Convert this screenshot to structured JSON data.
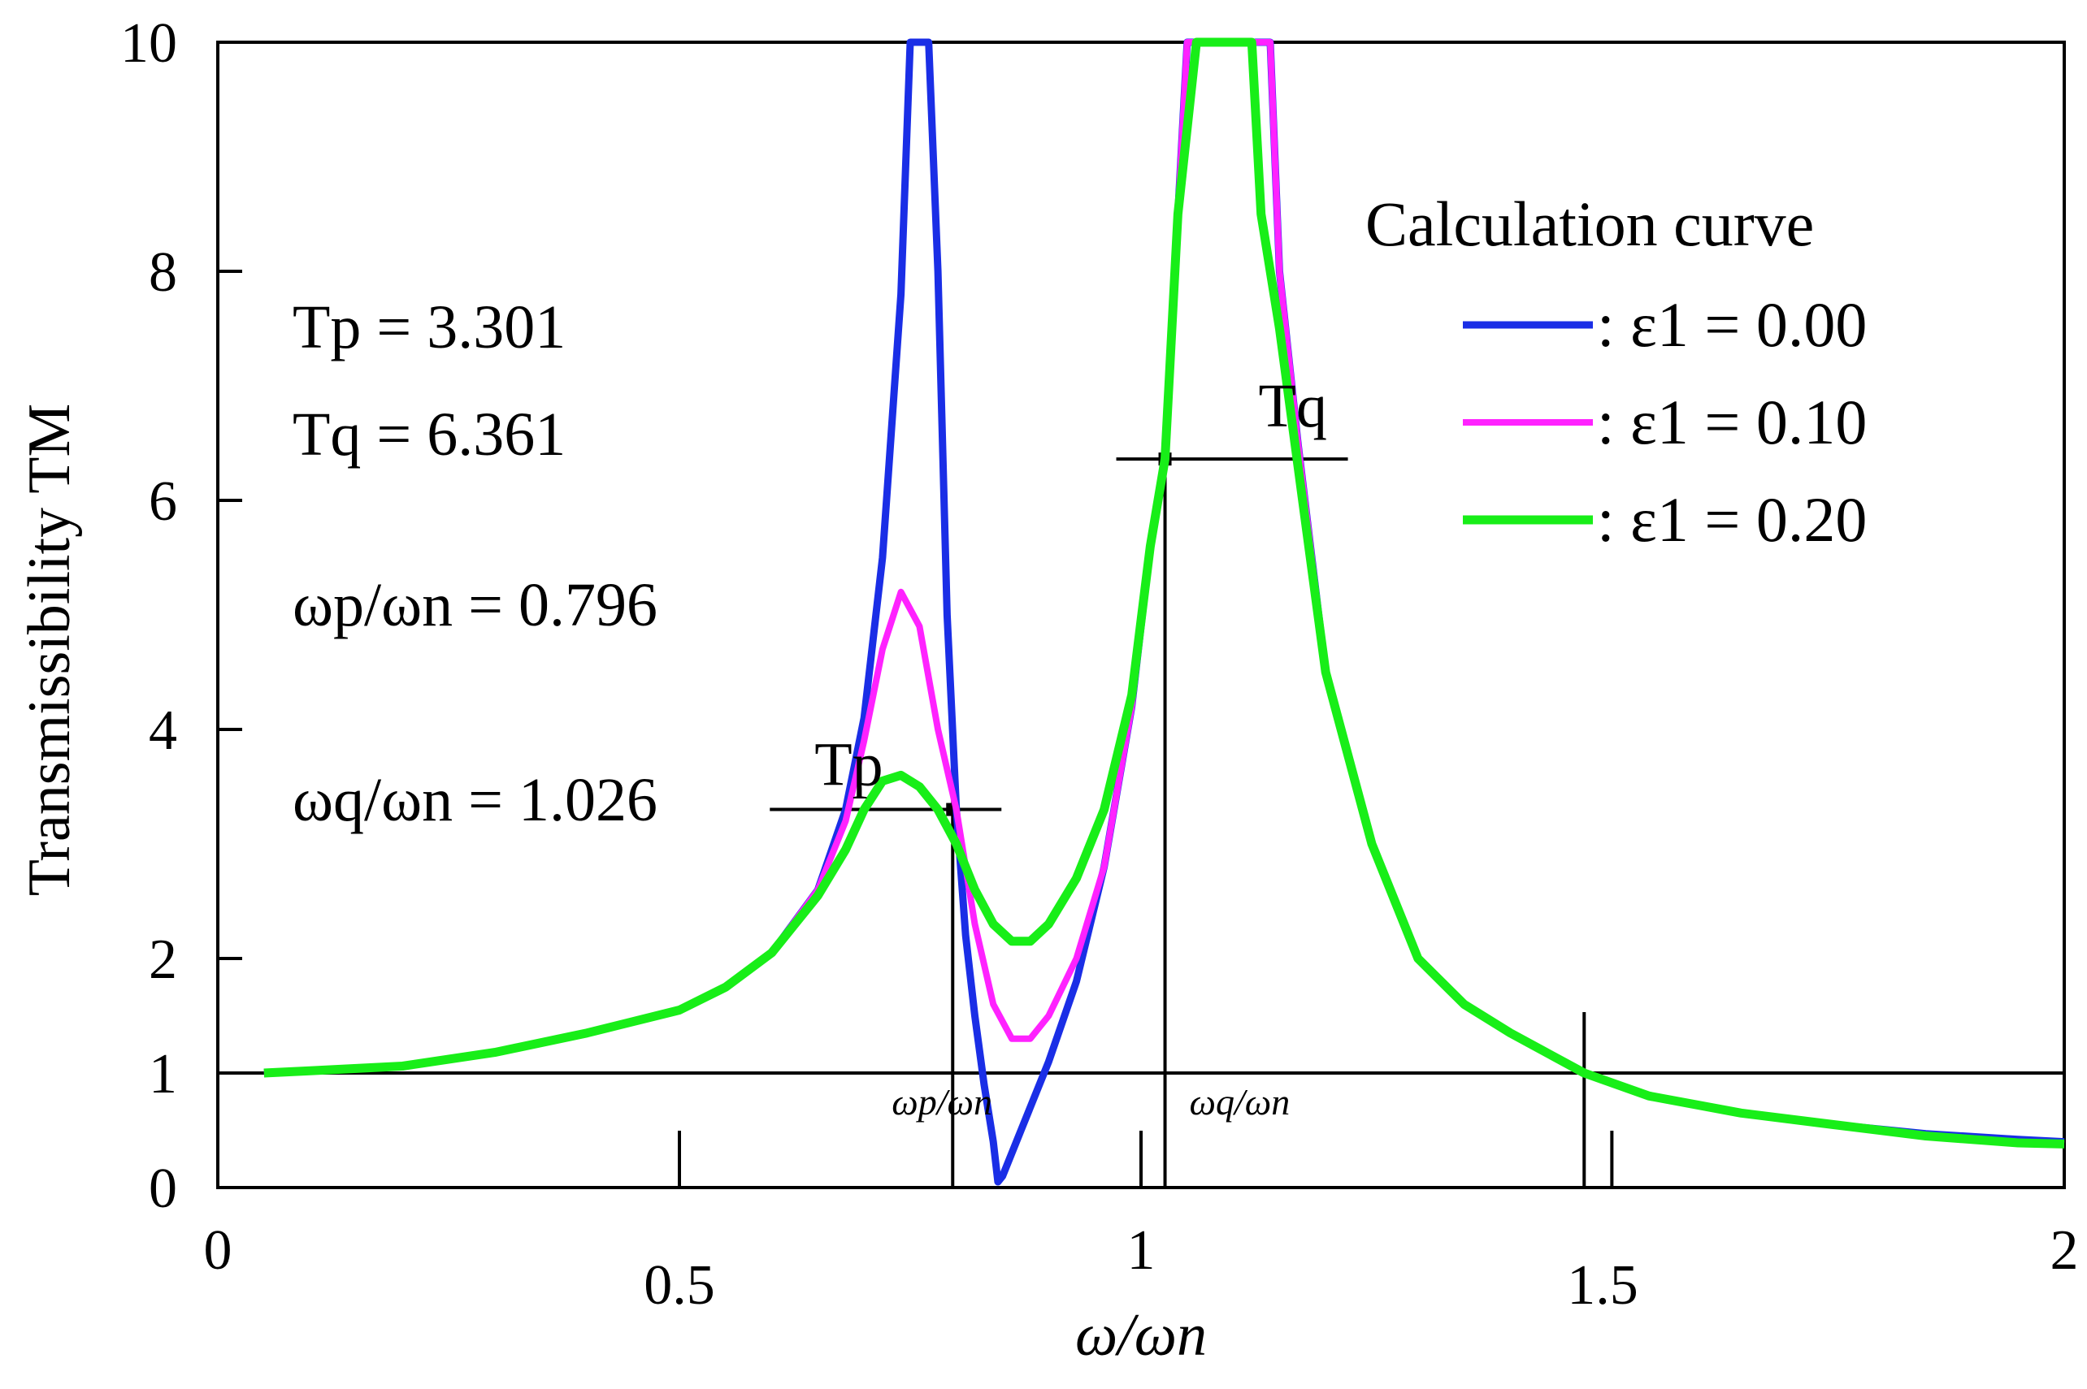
{
  "chart_data": {
    "type": "line",
    "title": "",
    "xlabel": "ω/ωn",
    "ylabel": "Transmissibility TM",
    "xlim": [
      0,
      2
    ],
    "ylim": [
      0,
      10
    ],
    "x_ticks": [
      {
        "value": 0,
        "label": "0"
      },
      {
        "value": 0.5,
        "label": "0.5"
      },
      {
        "value": 1,
        "label": "1"
      },
      {
        "value": 1.5,
        "label": "1.5"
      },
      {
        "value": 2,
        "label": "2"
      }
    ],
    "y_ticks": [
      {
        "value": 0,
        "label": "0"
      },
      {
        "value": 1,
        "label": "1"
      },
      {
        "value": 2,
        "label": "2"
      },
      {
        "value": 4,
        "label": "4"
      },
      {
        "value": 6,
        "label": "6"
      },
      {
        "value": 8,
        "label": "8"
      },
      {
        "value": 10,
        "label": "10"
      }
    ],
    "legend": {
      "title": "Calculation curve",
      "position": "top-right",
      "entries": [
        {
          "label": ": ε1 = 0.00",
          "color": "#1a2ee6"
        },
        {
          "label": ": ε1 = 0.10",
          "color": "#ff22ff"
        },
        {
          "label": ": ε1 = 0.20",
          "color": "#18ee18"
        }
      ]
    },
    "series": [
      {
        "name": "ε1 = 0.00",
        "color": "#1a2ee6",
        "points": [
          [
            0.05,
            1.0
          ],
          [
            0.1,
            1.02
          ],
          [
            0.2,
            1.06
          ],
          [
            0.3,
            1.18
          ],
          [
            0.4,
            1.35
          ],
          [
            0.5,
            1.55
          ],
          [
            0.55,
            1.75
          ],
          [
            0.6,
            2.05
          ],
          [
            0.65,
            2.6
          ],
          [
            0.68,
            3.3
          ],
          [
            0.7,
            4.1
          ],
          [
            0.72,
            5.5
          ],
          [
            0.74,
            7.8
          ],
          [
            0.75,
            10.0
          ],
          [
            0.77,
            10.0
          ],
          [
            0.78,
            8.0
          ],
          [
            0.79,
            5.0
          ],
          [
            0.8,
            3.3
          ],
          [
            0.81,
            2.2
          ],
          [
            0.82,
            1.5
          ],
          [
            0.83,
            0.9
          ],
          [
            0.84,
            0.4
          ],
          [
            0.845,
            0.05
          ],
          [
            0.85,
            0.1
          ],
          [
            0.87,
            0.5
          ],
          [
            0.9,
            1.1
          ],
          [
            0.93,
            1.8
          ],
          [
            0.96,
            2.8
          ],
          [
            0.99,
            4.2
          ],
          [
            1.01,
            5.6
          ],
          [
            1.026,
            6.36
          ],
          [
            1.04,
            8.5
          ],
          [
            1.05,
            10.0
          ],
          [
            1.14,
            10.0
          ],
          [
            1.15,
            8.0
          ],
          [
            1.17,
            6.5
          ],
          [
            1.2,
            4.5
          ],
          [
            1.25,
            3.0
          ],
          [
            1.3,
            2.0
          ],
          [
            1.35,
            1.6
          ],
          [
            1.4,
            1.35
          ],
          [
            1.48,
            1.0
          ],
          [
            1.55,
            0.8
          ],
          [
            1.65,
            0.65
          ],
          [
            1.75,
            0.55
          ],
          [
            1.85,
            0.47
          ],
          [
            1.95,
            0.42
          ],
          [
            2.0,
            0.4
          ]
        ]
      },
      {
        "name": "ε1 = 0.10",
        "color": "#ff22ff",
        "points": [
          [
            0.05,
            1.0
          ],
          [
            0.1,
            1.02
          ],
          [
            0.2,
            1.06
          ],
          [
            0.3,
            1.18
          ],
          [
            0.4,
            1.35
          ],
          [
            0.5,
            1.55
          ],
          [
            0.55,
            1.75
          ],
          [
            0.6,
            2.05
          ],
          [
            0.65,
            2.6
          ],
          [
            0.68,
            3.2
          ],
          [
            0.7,
            3.9
          ],
          [
            0.72,
            4.7
          ],
          [
            0.74,
            5.2
          ],
          [
            0.76,
            4.9
          ],
          [
            0.78,
            4.0
          ],
          [
            0.8,
            3.3
          ],
          [
            0.82,
            2.3
          ],
          [
            0.84,
            1.6
          ],
          [
            0.86,
            1.3
          ],
          [
            0.88,
            1.3
          ],
          [
            0.9,
            1.5
          ],
          [
            0.93,
            2.0
          ],
          [
            0.96,
            2.8
          ],
          [
            0.99,
            4.2
          ],
          [
            1.01,
            5.6
          ],
          [
            1.026,
            6.36
          ],
          [
            1.04,
            8.5
          ],
          [
            1.05,
            10.0
          ],
          [
            1.14,
            10.0
          ],
          [
            1.15,
            8.0
          ],
          [
            1.17,
            6.5
          ],
          [
            1.2,
            4.5
          ],
          [
            1.25,
            3.0
          ],
          [
            1.3,
            2.0
          ],
          [
            1.35,
            1.6
          ],
          [
            1.4,
            1.35
          ],
          [
            1.48,
            1.0
          ],
          [
            1.55,
            0.8
          ],
          [
            1.65,
            0.65
          ],
          [
            1.75,
            0.55
          ],
          [
            1.85,
            0.45
          ],
          [
            1.95,
            0.4
          ],
          [
            2.0,
            0.38
          ]
        ]
      },
      {
        "name": "ε1 = 0.20",
        "color": "#18ee18",
        "points": [
          [
            0.05,
            1.0
          ],
          [
            0.1,
            1.02
          ],
          [
            0.2,
            1.06
          ],
          [
            0.3,
            1.18
          ],
          [
            0.4,
            1.35
          ],
          [
            0.5,
            1.55
          ],
          [
            0.55,
            1.75
          ],
          [
            0.6,
            2.05
          ],
          [
            0.65,
            2.55
          ],
          [
            0.68,
            2.95
          ],
          [
            0.7,
            3.3
          ],
          [
            0.72,
            3.55
          ],
          [
            0.74,
            3.6
          ],
          [
            0.76,
            3.5
          ],
          [
            0.78,
            3.3
          ],
          [
            0.8,
            3.0
          ],
          [
            0.82,
            2.6
          ],
          [
            0.84,
            2.3
          ],
          [
            0.86,
            2.15
          ],
          [
            0.88,
            2.15
          ],
          [
            0.9,
            2.3
          ],
          [
            0.93,
            2.7
          ],
          [
            0.96,
            3.3
          ],
          [
            0.99,
            4.3
          ],
          [
            1.01,
            5.6
          ],
          [
            1.026,
            6.36
          ],
          [
            1.04,
            8.5
          ],
          [
            1.06,
            10.0
          ],
          [
            1.12,
            10.0
          ],
          [
            1.13,
            8.5
          ],
          [
            1.15,
            7.5
          ],
          [
            1.17,
            6.3
          ],
          [
            1.2,
            4.5
          ],
          [
            1.25,
            3.0
          ],
          [
            1.3,
            2.0
          ],
          [
            1.35,
            1.6
          ],
          [
            1.4,
            1.35
          ],
          [
            1.48,
            1.0
          ],
          [
            1.55,
            0.8
          ],
          [
            1.65,
            0.65
          ],
          [
            1.75,
            0.55
          ],
          [
            1.85,
            0.45
          ],
          [
            1.95,
            0.39
          ],
          [
            2.0,
            0.38
          ]
        ]
      }
    ],
    "annotations": {
      "tp_label": "Tp = 3.301",
      "tq_label": "Tq = 6.361",
      "wp_ratio_label": "ωp/ωn = 0.796",
      "wq_ratio_label": "ωq/ωn = 1.026",
      "marker_tp": "Tp",
      "marker_tq": "Tq",
      "marker_wp": "ωp/ωn",
      "marker_wq": "ωq/ωn",
      "tp_value": 3.301,
      "tq_value": 6.361,
      "wp_value": 0.796,
      "wq_value": 1.026,
      "crossing_x": 1.48
    }
  }
}
